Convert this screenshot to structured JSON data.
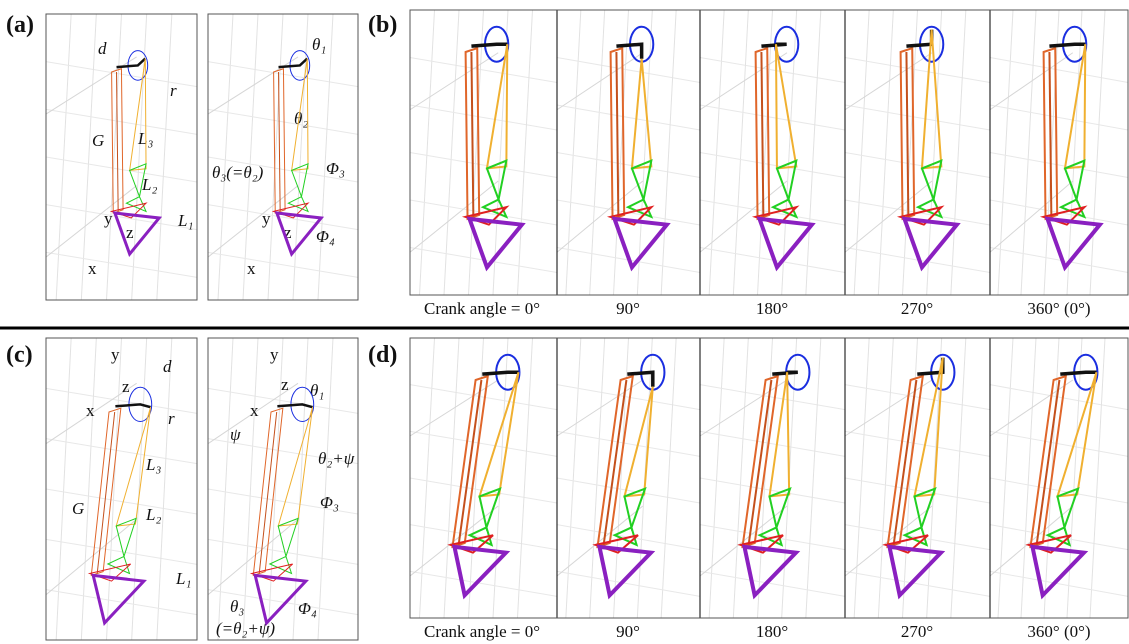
{
  "panels": [
    {
      "label": "(a)",
      "annotations": [
        "d",
        "r",
        "G",
        "L₃",
        "L₂",
        "L₁",
        "y",
        "z",
        "x",
        "θ₁",
        "θ₂",
        "θ₃(=θ₂)",
        "Φ₃",
        "Φ₄",
        "y",
        "z",
        "x"
      ]
    },
    {
      "label": "(b)",
      "captions": [
        "Crank angle = 0°",
        "90°",
        "180°",
        "270°",
        "360° (0°)"
      ]
    },
    {
      "label": "(c)",
      "annotations": [
        "y",
        "d",
        "z",
        "x",
        "r",
        "L₃",
        "G",
        "L₂",
        "L₁",
        "y",
        "θ₁",
        "z",
        "x",
        "ψ",
        "θ₂+ψ",
        "Φ₃",
        "θ₃",
        "(=θ₂+ψ)",
        "Φ₄"
      ]
    },
    {
      "label": "(d)",
      "captions": [
        "Crank angle = 0°",
        "90°",
        "180°",
        "270°",
        "360° (0°)"
      ]
    }
  ]
}
